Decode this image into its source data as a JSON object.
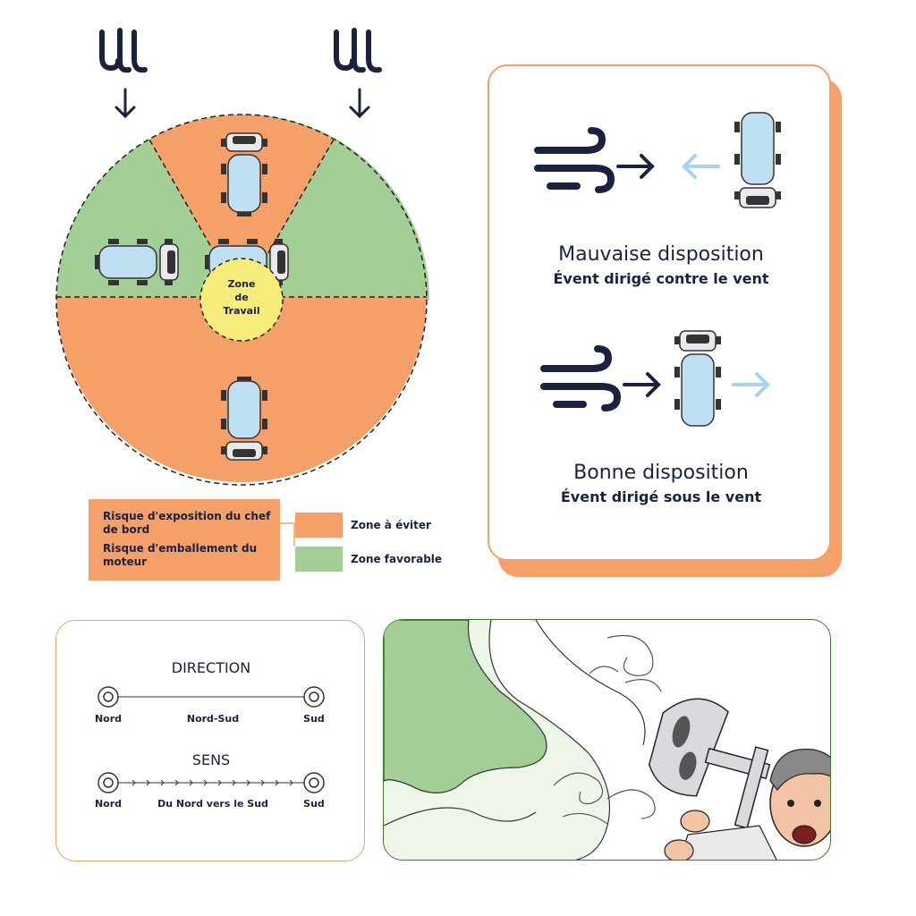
{
  "circle": {
    "center_label_lines": [
      "Zone",
      "de",
      "Travail"
    ]
  },
  "legend": {
    "risk_lines": [
      "Risque d'exposition du chef",
      "de bord",
      "Risque d'emballement du",
      "moteur"
    ],
    "items": [
      {
        "label": "Zone à éviter",
        "color": "#f4a068"
      },
      {
        "label": "Zone favorable",
        "color": "#a3cf96"
      }
    ]
  },
  "layouts": {
    "bad": {
      "title": "Mauvaise disposition",
      "subtitle": "Évent dirigé contre  le vent"
    },
    "good": {
      "title": "Bonne disposition",
      "subtitle": "Évent dirigé sous le vent"
    }
  },
  "direction_card": {
    "direction_title": "DIRECTION",
    "direction_left": "Nord",
    "direction_mid": "Nord-Sud",
    "direction_right": "Sud",
    "sens_title": "SENS",
    "sens_left": "Nord",
    "sens_mid": "Du Nord vers le Sud",
    "sens_right": "Sud"
  },
  "colors": {
    "orange": "#f4a068",
    "green": "#a3cf96",
    "navy": "#1b2240",
    "yellow": "#f7ec7a",
    "light_blue": "#a6d4ee",
    "dark_green": "#3d7a2c"
  },
  "icons": [
    "wind-icon",
    "arrow-down-icon",
    "arrow-right-icon",
    "arrow-left-icon",
    "truck-icon"
  ]
}
